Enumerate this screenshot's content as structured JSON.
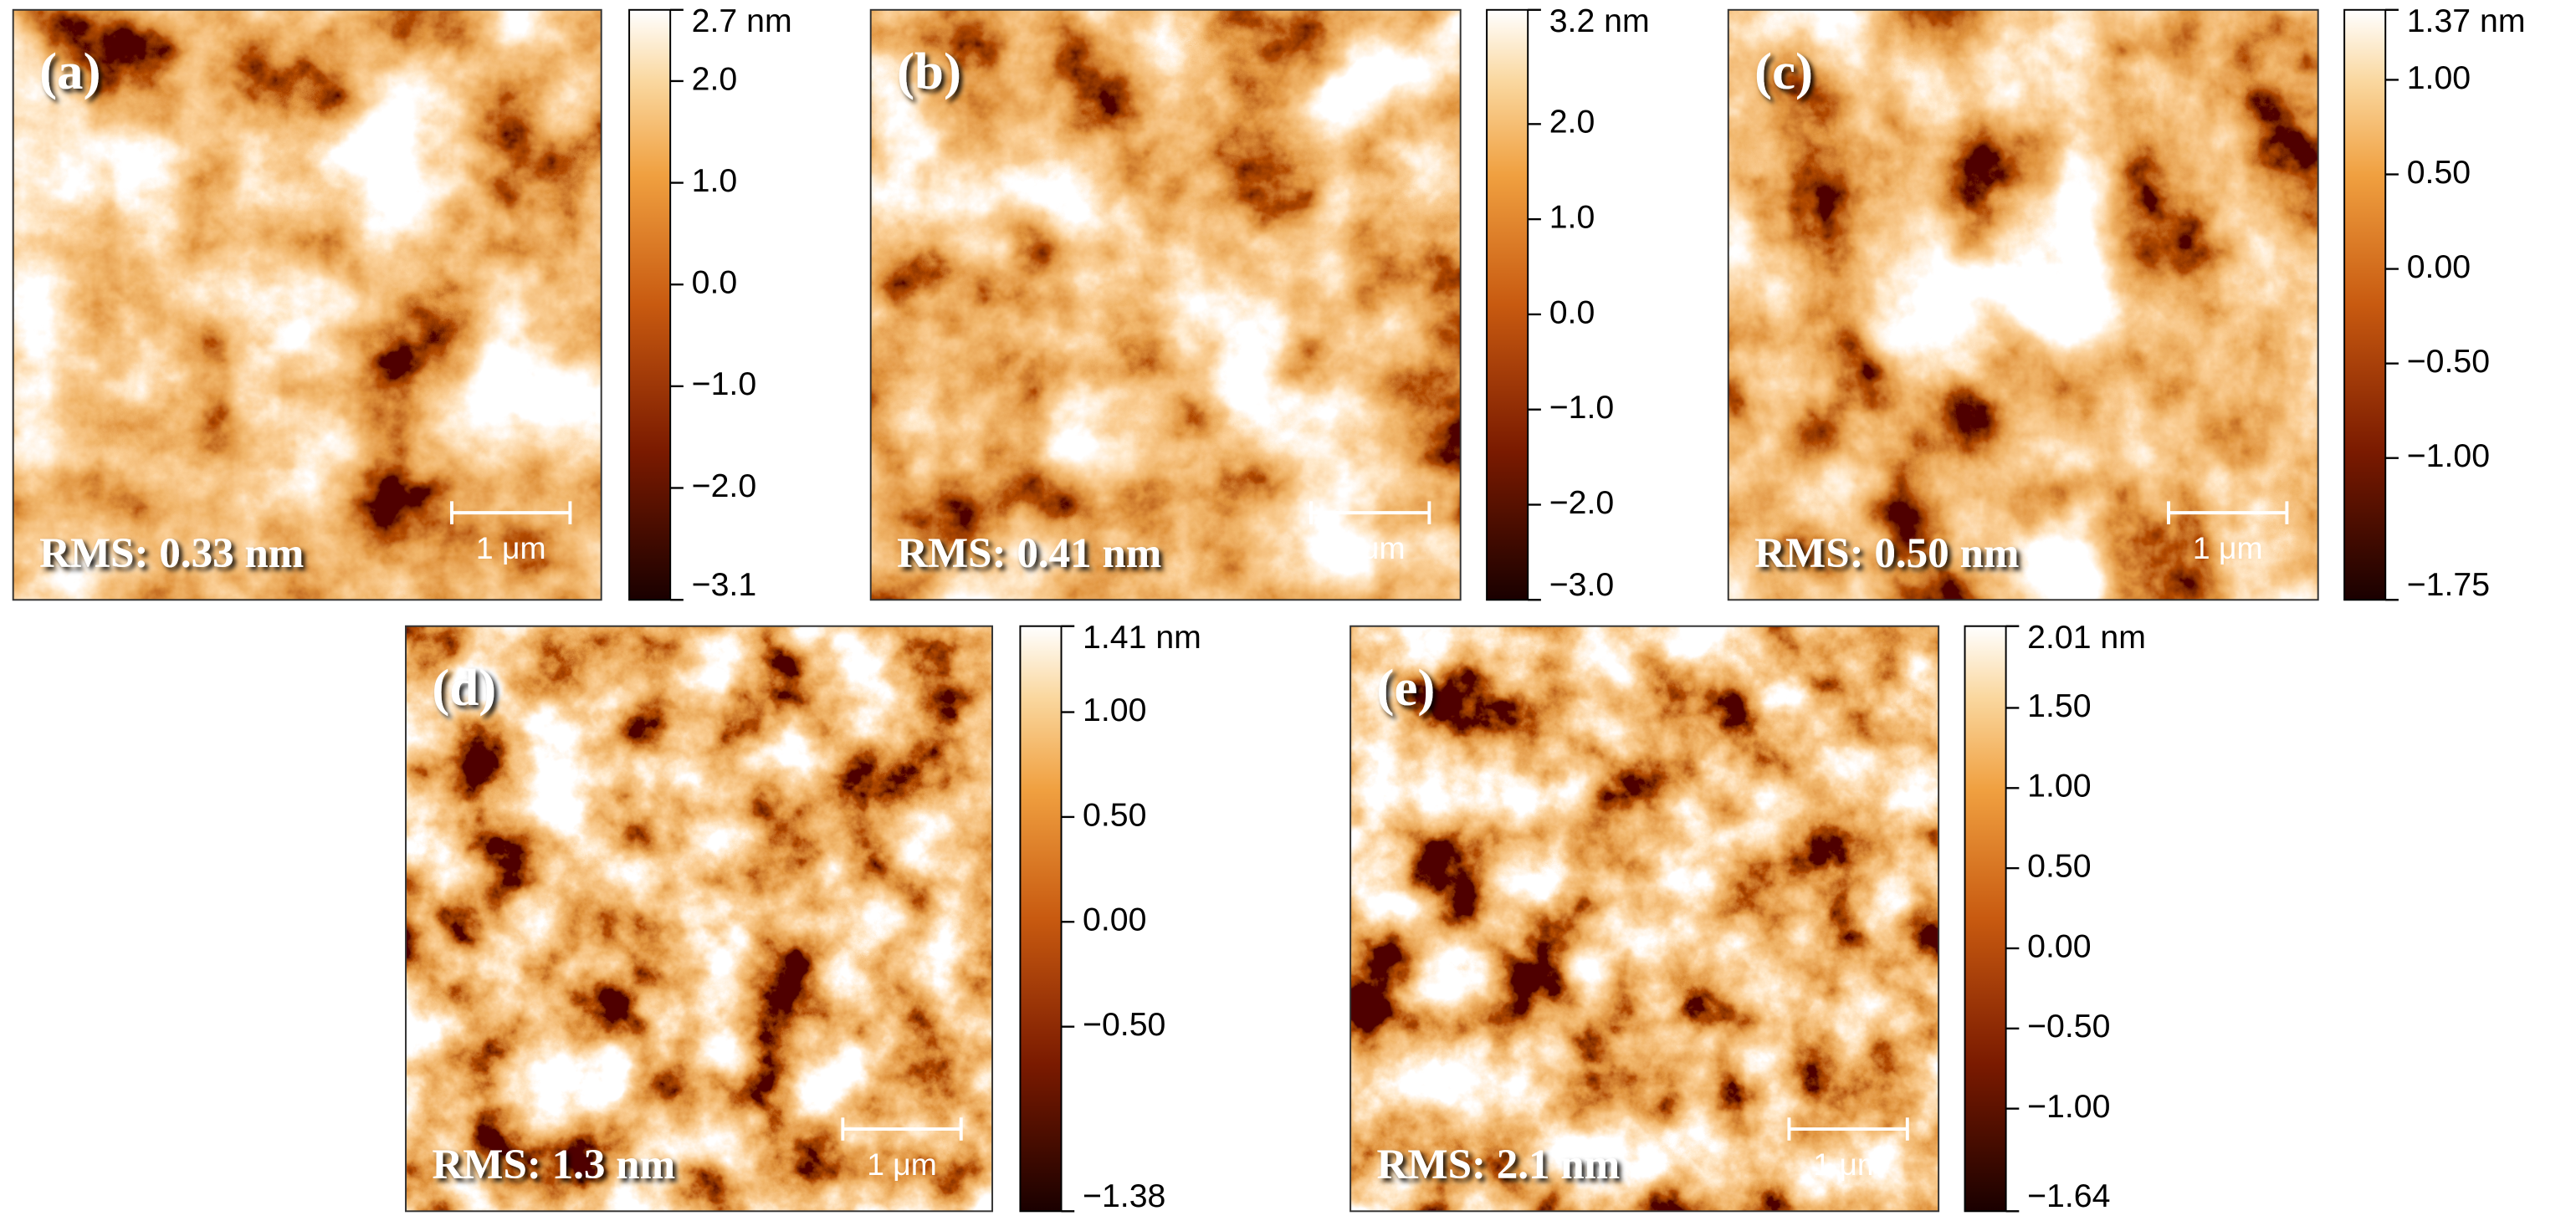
{
  "panels": [
    {
      "label": "(a)",
      "rms": "RMS: 0.33 nm",
      "scale_bar": "1 μm",
      "colorbar": {
        "range": [
          -3.1,
          2.7
        ],
        "ticks": [
          {
            "value": 2.7,
            "label": "2.7 nm"
          },
          {
            "value": 2.0,
            "label": "2.0"
          },
          {
            "value": 1.0,
            "label": "1.0"
          },
          {
            "value": 0.0,
            "label": "0.0"
          },
          {
            "value": -1.0,
            "label": "−1.0"
          },
          {
            "value": -2.0,
            "label": "−2.0"
          },
          {
            "value": -3.1,
            "label": "−3.1"
          }
        ]
      }
    },
    {
      "label": "(b)",
      "rms": "RMS: 0.41 nm",
      "scale_bar": "1 μm",
      "colorbar": {
        "range": [
          -3.0,
          3.2
        ],
        "ticks": [
          {
            "value": 3.2,
            "label": "3.2 nm"
          },
          {
            "value": 2.0,
            "label": "2.0"
          },
          {
            "value": 1.0,
            "label": "1.0"
          },
          {
            "value": 0.0,
            "label": "0.0"
          },
          {
            "value": -1.0,
            "label": "−1.0"
          },
          {
            "value": -2.0,
            "label": "−2.0"
          },
          {
            "value": -3.0,
            "label": "−3.0"
          }
        ]
      }
    },
    {
      "label": "(c)",
      "rms": "RMS: 0.50 nm",
      "scale_bar": "1 μm",
      "colorbar": {
        "range": [
          -1.75,
          1.37
        ],
        "ticks": [
          {
            "value": 1.37,
            "label": "1.37 nm"
          },
          {
            "value": 1.0,
            "label": "1.00"
          },
          {
            "value": 0.5,
            "label": "0.50"
          },
          {
            "value": 0.0,
            "label": "0.00"
          },
          {
            "value": -0.5,
            "label": "−0.50"
          },
          {
            "value": -1.0,
            "label": "−1.00"
          },
          {
            "value": -1.75,
            "label": "−1.75"
          }
        ]
      }
    },
    {
      "label": "(d)",
      "rms": "RMS: 1.3 nm",
      "scale_bar": "1 μm",
      "colorbar": {
        "range": [
          -1.38,
          1.41
        ],
        "ticks": [
          {
            "value": 1.41,
            "label": "1.41 nm"
          },
          {
            "value": 1.0,
            "label": "1.00"
          },
          {
            "value": 0.5,
            "label": "0.50"
          },
          {
            "value": 0.0,
            "label": "0.00"
          },
          {
            "value": -0.5,
            "label": "−0.50"
          },
          {
            "value": -1.38,
            "label": "−1.38"
          }
        ]
      }
    },
    {
      "label": "(e)",
      "rms": "RMS: 2.1 nm",
      "scale_bar": "1 μm",
      "colorbar": {
        "range": [
          -1.64,
          2.01
        ],
        "ticks": [
          {
            "value": 2.01,
            "label": "2.01 nm"
          },
          {
            "value": 1.5,
            "label": "1.50"
          },
          {
            "value": 1.0,
            "label": "1.00"
          },
          {
            "value": 0.5,
            "label": "0.50"
          },
          {
            "value": 0.0,
            "label": "0.00"
          },
          {
            "value": -0.5,
            "label": "−0.50"
          },
          {
            "value": -1.0,
            "label": "−1.00"
          },
          {
            "value": -1.64,
            "label": "−1.64"
          }
        ]
      }
    }
  ]
}
